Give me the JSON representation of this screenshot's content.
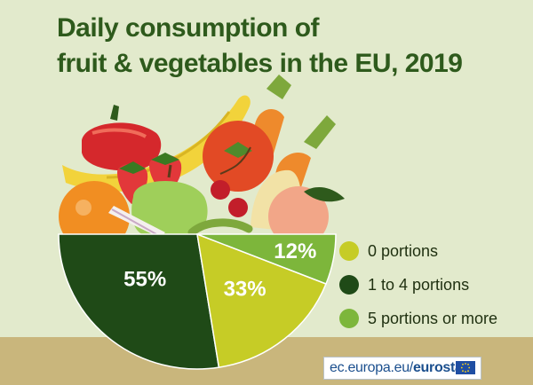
{
  "title": {
    "line1": "Daily consumption of",
    "line2": "fruit & vegetables in the EU, 2019"
  },
  "chart_data": {
    "type": "pie",
    "title": "Daily consumption of fruit & vegetables in the EU, 2019",
    "shape": "half-circle bowl",
    "unit": "%",
    "series": [
      {
        "name": "0 portions",
        "value": 33,
        "label": "33%",
        "color": "#c6cc26"
      },
      {
        "name": "1 to 4 portions",
        "value": 55,
        "label": "55%",
        "color": "#1f4a17"
      },
      {
        "name": "5 portions or more",
        "value": 12,
        "label": "12%",
        "color": "#7db63b"
      }
    ],
    "legend_position": "right"
  },
  "source": {
    "domain": "ec.europa.eu/",
    "brand": "eurostat"
  },
  "icons": [
    "fruit-bowl-illustration",
    "eu-flag-icon"
  ],
  "colors": {
    "background": "#e2eacc",
    "title": "#2e5a1c",
    "floor": "#c9b67c"
  }
}
